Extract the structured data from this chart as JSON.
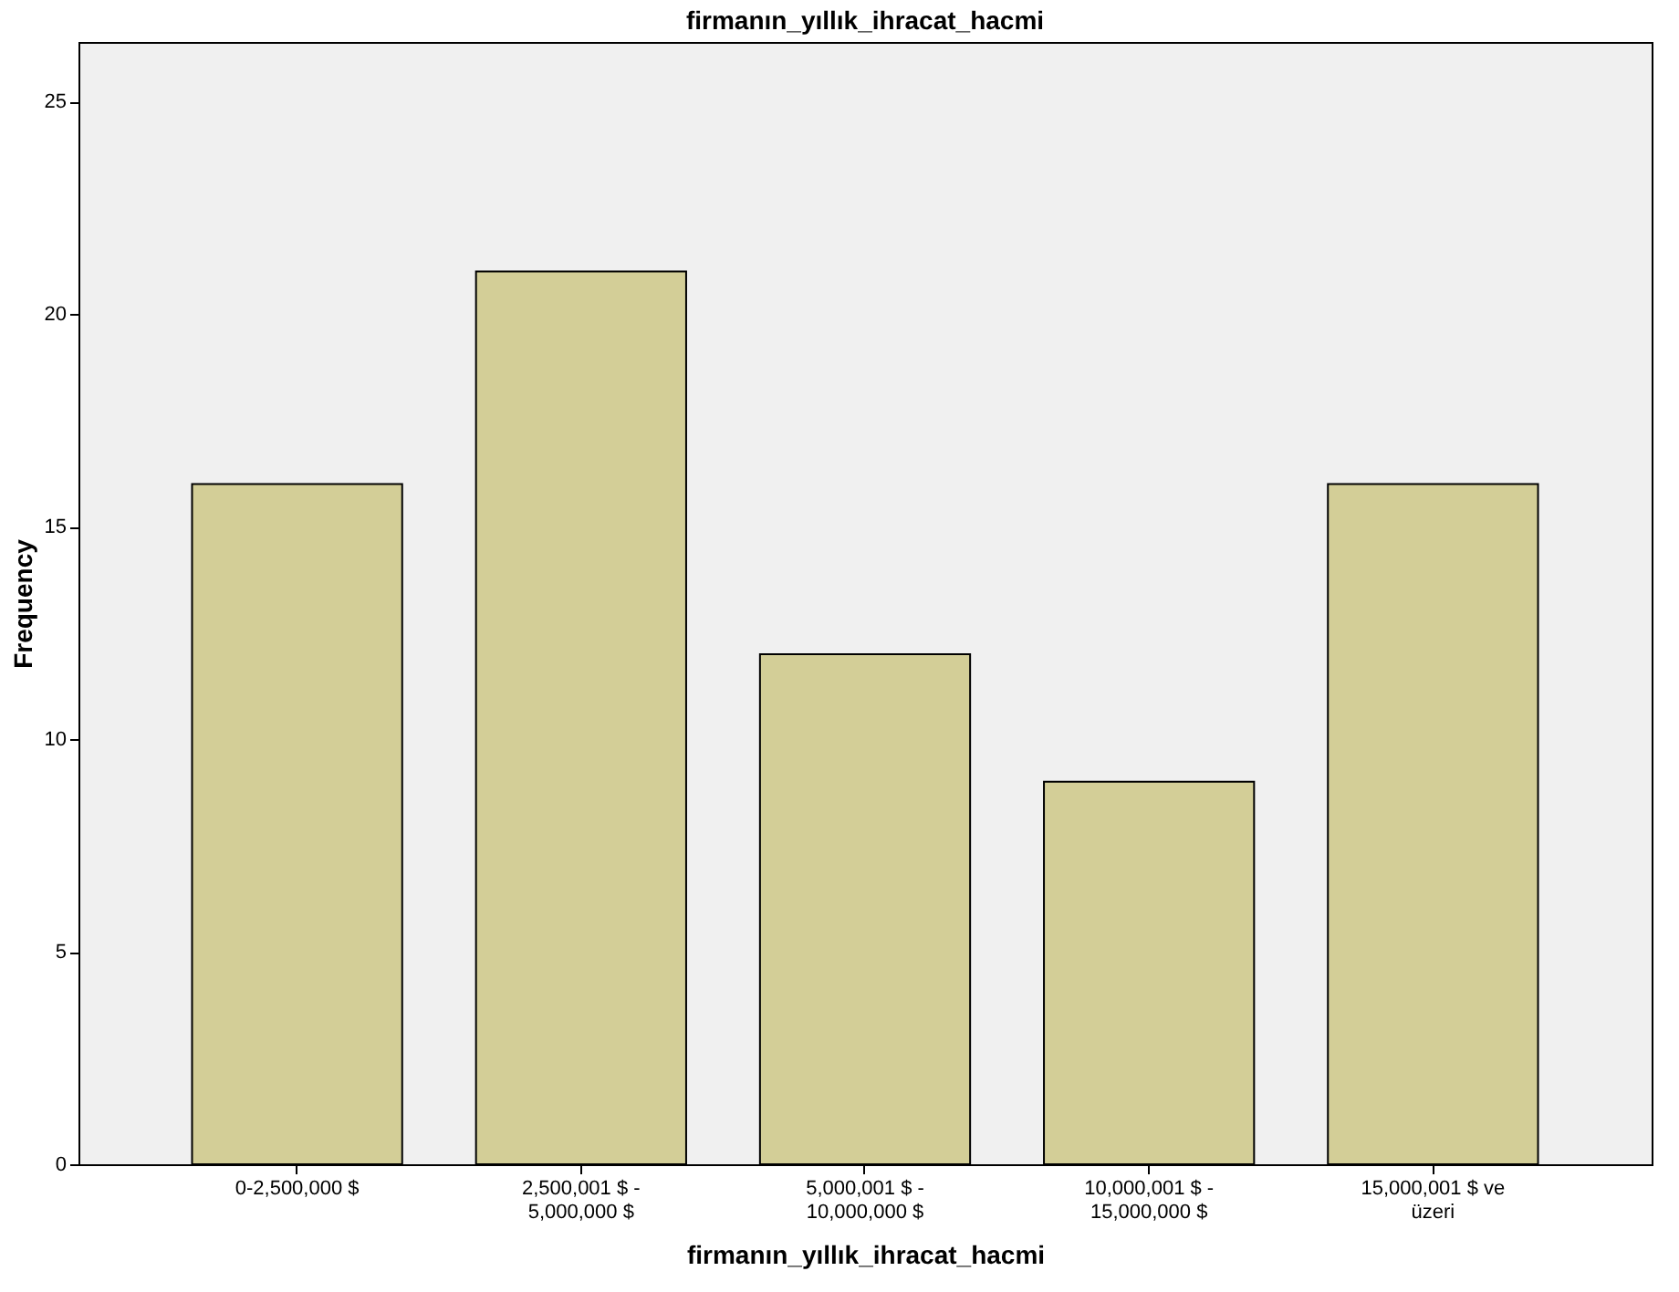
{
  "chart_data": {
    "type": "bar",
    "title": "firmanın_yıllık_ihracat_hacmi",
    "xlabel": "firmanın_yıllık_ihracat_hacmi",
    "ylabel": "Frequency",
    "categories": [
      "0-2,500,000 $",
      "2,500,001 $ -\n5,000,000 $",
      "5,000,001 $ -\n10,000,000 $",
      "10,000,001 $ -\n15,000,000 $",
      "15,000,001 $ ve\nüzeri"
    ],
    "values": [
      16,
      21,
      12,
      9,
      16
    ],
    "color": "#d3ce97",
    "ylim": [
      0,
      26.4
    ],
    "yticks": [
      0,
      5,
      10,
      15,
      20,
      25
    ],
    "grid": false
  }
}
